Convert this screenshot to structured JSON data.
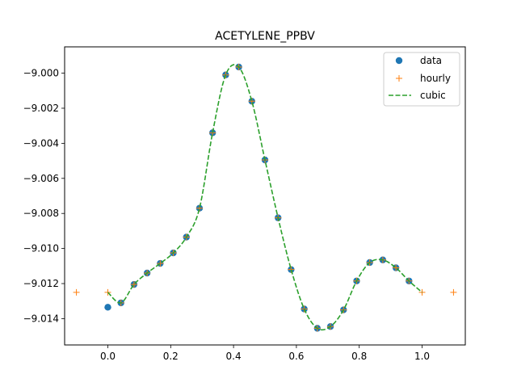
{
  "chart_data": {
    "type": "line",
    "title": "ACETYLENE_PPBV",
    "xlabel": "",
    "ylabel": "",
    "xlim": [
      -0.1375,
      1.1375
    ],
    "ylim": [
      -9.0155,
      -8.9985
    ],
    "xticks": [
      0.0,
      0.2,
      0.4,
      0.6,
      0.8,
      1.0
    ],
    "xtick_labels": [
      "0.0",
      "0.2",
      "0.4",
      "0.6",
      "0.8",
      "1.0"
    ],
    "yticks": [
      -9.014,
      -9.012,
      -9.01,
      -9.008,
      -9.006,
      -9.004,
      -9.002,
      -9.0
    ],
    "ytick_labels": [
      "−9.014",
      "−9.012",
      "−9.010",
      "−9.008",
      "−9.006",
      "−9.004",
      "−9.002",
      "−9.000"
    ],
    "grid": false,
    "legend_position": "upper right",
    "series": [
      {
        "name": "data",
        "kind": "markers",
        "marker": "circle",
        "color": "#1f77b4",
        "x": [
          0.0,
          0.0417,
          0.0833,
          0.125,
          0.1667,
          0.2083,
          0.25,
          0.2917,
          0.3333,
          0.375,
          0.4167,
          0.4583,
          0.5,
          0.5417,
          0.5833,
          0.625,
          0.6667,
          0.7083,
          0.75,
          0.7917,
          0.8333,
          0.875,
          0.9167,
          0.9583
        ],
        "y": [
          -9.01335,
          -9.0131,
          -9.01205,
          -9.0114,
          -9.01085,
          -9.01025,
          -9.00935,
          -9.0077,
          -9.0034,
          -9.0001,
          -8.99965,
          -9.0016,
          -9.00495,
          -9.00825,
          -9.0112,
          -9.01345,
          -9.01455,
          -9.01445,
          -9.0135,
          -9.01185,
          -9.0108,
          -9.01065,
          -9.0111,
          -9.01185
        ]
      },
      {
        "name": "hourly",
        "kind": "markers",
        "marker": "plus",
        "color": "#ff7f0e",
        "x": [
          -0.1,
          0.0,
          0.0417,
          0.0833,
          0.125,
          0.1667,
          0.2083,
          0.25,
          0.2917,
          0.3333,
          0.375,
          0.4167,
          0.4583,
          0.5,
          0.5417,
          0.5833,
          0.625,
          0.6667,
          0.7083,
          0.75,
          0.7917,
          0.8333,
          0.875,
          0.9167,
          0.9583,
          1.0,
          1.1
        ],
        "y": [
          -9.0125,
          -9.0125,
          -9.0131,
          -9.01205,
          -9.0114,
          -9.01085,
          -9.01025,
          -9.00935,
          -9.0077,
          -9.0034,
          -9.0001,
          -8.99965,
          -9.0016,
          -9.00495,
          -9.00825,
          -9.0112,
          -9.01345,
          -9.01455,
          -9.01445,
          -9.0135,
          -9.01185,
          -9.0108,
          -9.01065,
          -9.0111,
          -9.01185,
          -9.0125,
          -9.0125
        ]
      },
      {
        "name": "cubic",
        "kind": "line",
        "dash": "dashed",
        "color": "#2ca02c",
        "x": [
          0.0,
          0.0417,
          0.0833,
          0.125,
          0.1667,
          0.2083,
          0.25,
          0.2917,
          0.3333,
          0.375,
          0.4167,
          0.4583,
          0.5,
          0.5417,
          0.5833,
          0.625,
          0.6667,
          0.7083,
          0.75,
          0.7917,
          0.8333,
          0.875,
          0.9167,
          0.9583,
          1.0
        ],
        "y": [
          -9.0125,
          -9.0131,
          -9.01205,
          -9.0114,
          -9.01085,
          -9.01025,
          -9.00935,
          -9.0077,
          -9.0034,
          -9.0001,
          -8.99965,
          -9.0016,
          -9.00495,
          -9.00825,
          -9.0112,
          -9.01345,
          -9.01455,
          -9.01445,
          -9.0135,
          -9.01185,
          -9.0108,
          -9.01065,
          -9.0111,
          -9.01185,
          -9.0125
        ]
      }
    ]
  }
}
